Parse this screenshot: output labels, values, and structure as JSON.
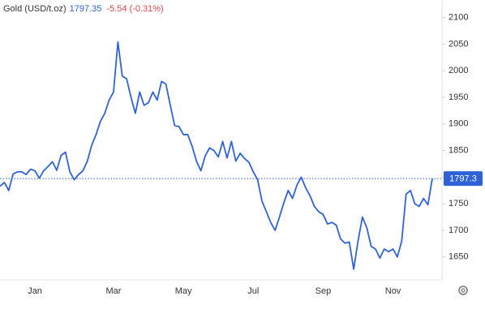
{
  "chart_data": {
    "type": "line",
    "title": "Gold (USD/t.oz)",
    "price": 1797.35,
    "change": "-5.54 (-0.31%)",
    "categories": [
      null,
      null,
      null,
      null,
      null,
      null,
      null,
      null,
      "Jan",
      null,
      null,
      null,
      null,
      null,
      null,
      null,
      null,
      null,
      null,
      null,
      null,
      null,
      null,
      null,
      null,
      null,
      "Mar",
      null,
      null,
      null,
      null,
      null,
      null,
      null,
      null,
      null,
      null,
      null,
      null,
      null,
      null,
      null,
      "May",
      null,
      null,
      null,
      null,
      null,
      null,
      null,
      null,
      null,
      null,
      null,
      null,
      null,
      null,
      null,
      "Jul",
      null,
      null,
      null,
      null,
      null,
      null,
      null,
      null,
      null,
      null,
      null,
      null,
      null,
      null,
      null,
      "Sep",
      null,
      null,
      null,
      null,
      null,
      null,
      null,
      null,
      null,
      null,
      null,
      null,
      null,
      null,
      null,
      "Nov",
      null,
      null,
      null,
      null,
      null,
      null,
      null,
      null,
      null
    ],
    "values": [
      1783,
      1790,
      1775,
      1806,
      1810,
      1810,
      1805,
      1815,
      1812,
      1798,
      1812,
      1820,
      1829,
      1813,
      1841,
      1847,
      1810,
      1795,
      1805,
      1812,
      1830,
      1860,
      1880,
      1905,
      1920,
      1945,
      1960,
      2054,
      1990,
      1985,
      1950,
      1920,
      1960,
      1935,
      1940,
      1960,
      1945,
      1980,
      1975,
      1935,
      1897,
      1895,
      1880,
      1880,
      1858,
      1830,
      1812,
      1840,
      1855,
      1850,
      1838,
      1867,
      1836,
      1867,
      1830,
      1845,
      1835,
      1828,
      1810,
      1795,
      1755,
      1735,
      1715,
      1700,
      1725,
      1752,
      1775,
      1760,
      1785,
      1800,
      1780,
      1765,
      1745,
      1735,
      1730,
      1712,
      1715,
      1710,
      1684,
      1676,
      1678,
      1627,
      1680,
      1725,
      1705,
      1670,
      1665,
      1648,
      1665,
      1660,
      1665,
      1650,
      1680,
      1768,
      1775,
      1750,
      1745,
      1760,
      1748,
      1797.35
    ],
    "color": "#2f62d6",
    "ylim": [
      1607,
      2133
    ],
    "yticks": [
      1650,
      1700,
      1750,
      1800,
      1850,
      1900,
      1950,
      2000,
      2050,
      2100
    ],
    "reference_line": {
      "value": 1797.35,
      "label": "1797.3"
    }
  }
}
